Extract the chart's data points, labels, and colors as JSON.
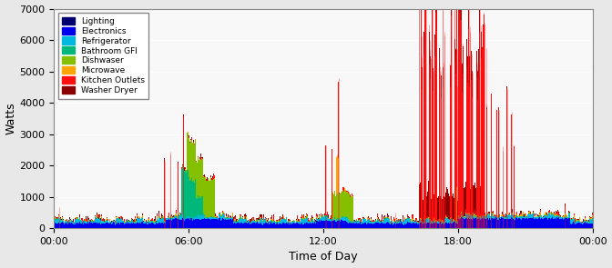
{
  "title": "",
  "xlabel": "Time of Day",
  "ylabel": "Watts",
  "ylim": [
    0,
    7000
  ],
  "xlim": [
    0,
    1440
  ],
  "xtick_labels": [
    "00:00",
    "06:00",
    "12:00",
    "18:00",
    "00:00"
  ],
  "xtick_positions": [
    0,
    360,
    720,
    1080,
    1440
  ],
  "ytick_positions": [
    0,
    1000,
    2000,
    3000,
    4000,
    5000,
    6000,
    7000
  ],
  "legend_items": [
    {
      "label": "Lighting",
      "color": "#00006E"
    },
    {
      "label": "Electronics",
      "color": "#0000EE"
    },
    {
      "label": "Refrigerator",
      "color": "#00B8E0"
    },
    {
      "label": "Bathroom GFI",
      "color": "#00B87A"
    },
    {
      "label": "Dishwaser",
      "color": "#85C000"
    },
    {
      "label": "Microwave",
      "color": "#FFA500"
    },
    {
      "label": "Kitchen Outlets",
      "color": "#FF1010"
    },
    {
      "label": "Washer Dryer",
      "color": "#8B0000"
    }
  ],
  "fig_facecolor": "#e8e8e8",
  "ax_facecolor": "#f8f8f8"
}
